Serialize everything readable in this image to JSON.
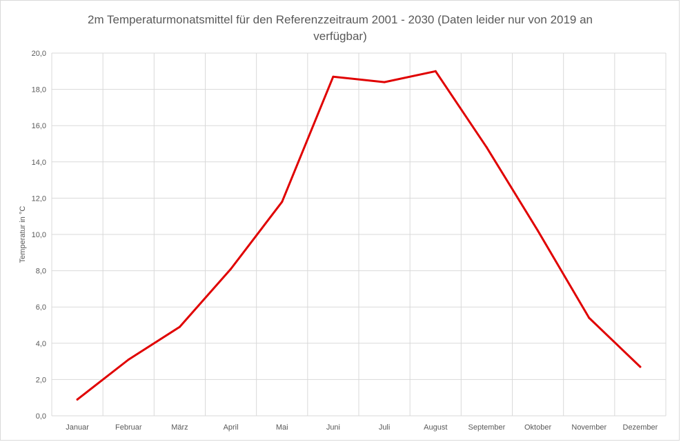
{
  "chart_data": {
    "type": "line",
    "title_lines": [
      "2m Temperaturmonatsmittel für den Referenzzeitraum 2001 - 2030 (Daten leider nur von 2019 an",
      "verfügbar)"
    ],
    "ylabel": "Temperatur  in °C",
    "xlabel": "",
    "ylim": [
      0,
      20
    ],
    "y_ticks": [
      "0,0",
      "2,0",
      "4,0",
      "6,0",
      "8,0",
      "10,0",
      "12,0",
      "14,0",
      "16,0",
      "18,0",
      "20,0"
    ],
    "categories": [
      "Januar",
      "Februar",
      "März",
      "April",
      "Mai",
      "Juni",
      "Juli",
      "August",
      "September",
      "Oktober",
      "November",
      "Dezember"
    ],
    "grid": true,
    "legend": "none",
    "series": [
      {
        "color": "#e00000",
        "values": [
          0.9,
          3.1,
          4.9,
          8.1,
          11.8,
          18.7,
          18.4,
          19.0,
          14.8,
          10.2,
          5.4,
          2.7
        ]
      }
    ]
  }
}
